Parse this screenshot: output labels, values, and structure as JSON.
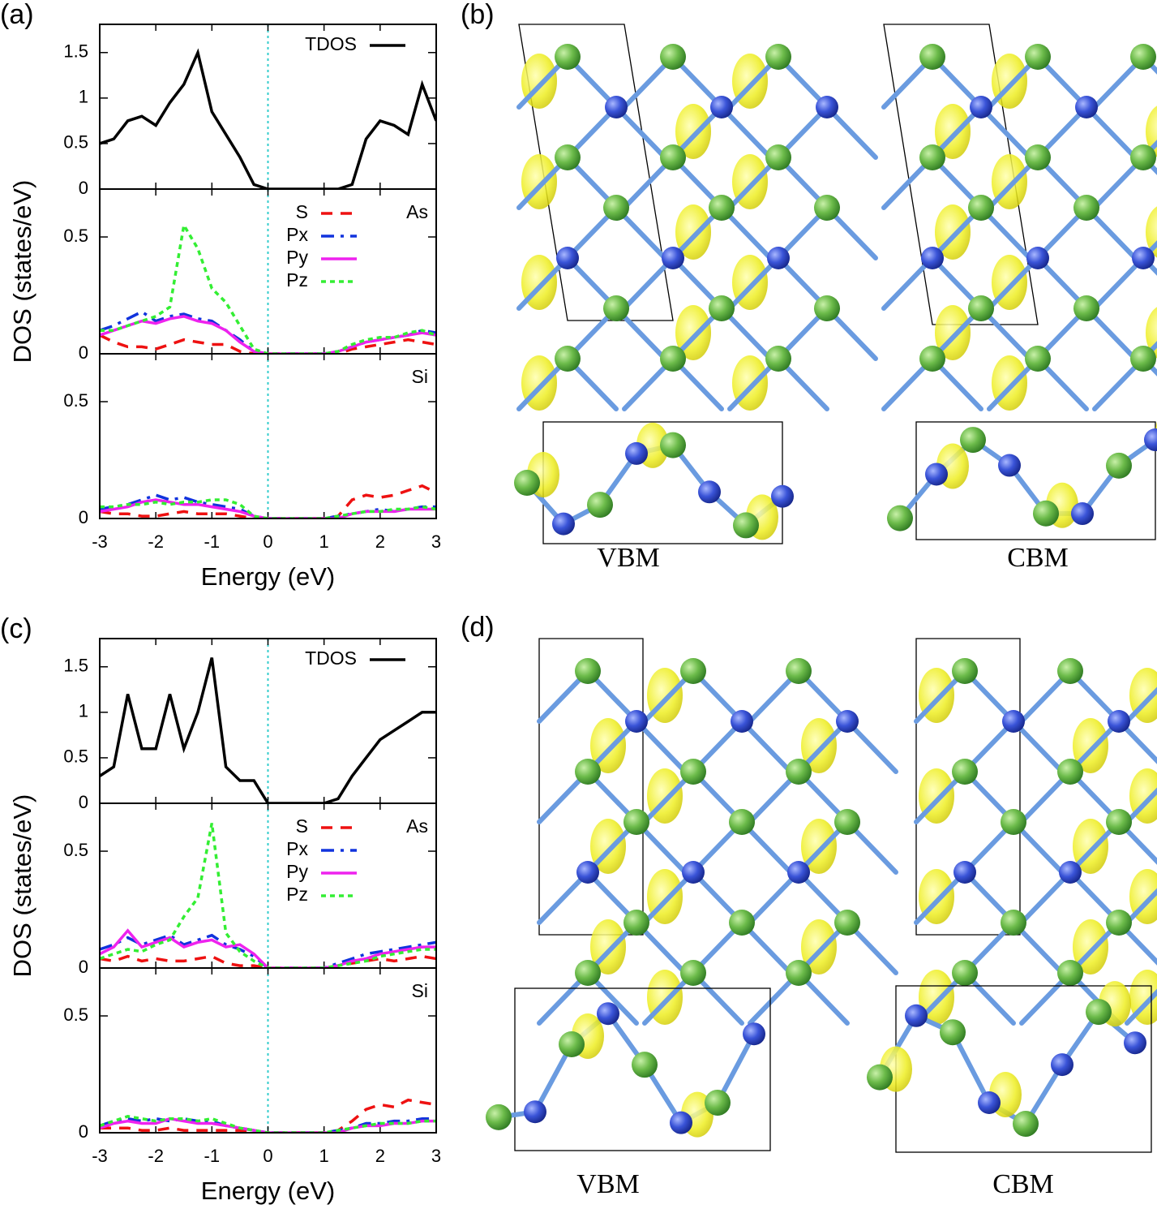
{
  "chart_data": [
    {
      "type": "line",
      "label": "(a)",
      "xlabel": "Energy (eV)",
      "ylabel": "DOS (states/eV)",
      "x": [
        -3,
        -2.75,
        -2.5,
        -2.25,
        -2,
        -1.75,
        -1.5,
        -1.25,
        -1,
        -0.75,
        -0.5,
        -0.25,
        0,
        0.25,
        0.5,
        0.75,
        1,
        1.25,
        1.5,
        1.75,
        2,
        2.25,
        2.5,
        2.75,
        3
      ],
      "xlim": [
        -3,
        3
      ],
      "xticks": [
        -3,
        -2,
        -1,
        0,
        1,
        2,
        3
      ],
      "vline": 0,
      "vline_color": "#33cccc",
      "panels": [
        {
          "ylim": [
            0,
            1.81
          ],
          "yticks": [
            0,
            0.5,
            1,
            1.5
          ],
          "series": [
            {
              "name": "TDOS",
              "color": "#000000",
              "dash": "solid",
              "values": [
                0.5,
                0.55,
                0.75,
                0.8,
                0.7,
                0.95,
                1.15,
                1.5,
                0.85,
                0.6,
                0.35,
                0.05,
                0,
                0,
                0,
                0,
                0,
                0,
                0.05,
                0.55,
                0.75,
                0.7,
                0.6,
                1.15,
                0.75
              ]
            }
          ]
        },
        {
          "label": "As",
          "ylim": [
            0,
            0.705
          ],
          "yticks": [
            0,
            0.5
          ],
          "series": [
            {
              "name": "S",
              "color": "#ee1111",
              "dash": "dashed",
              "values": [
                0.08,
                0.05,
                0.03,
                0.03,
                0.02,
                0.04,
                0.06,
                0.05,
                0.04,
                0.04,
                0.01,
                0,
                0,
                0,
                0,
                0,
                0,
                0,
                0.02,
                0.03,
                0.04,
                0.05,
                0.06,
                0.05,
                0.04
              ]
            },
            {
              "name": "Px",
              "color": "#1133dd",
              "dash": "dashdot",
              "values": [
                0.1,
                0.12,
                0.15,
                0.18,
                0.14,
                0.16,
                0.17,
                0.15,
                0.14,
                0.1,
                0.06,
                0.01,
                0,
                0,
                0,
                0,
                0,
                0.01,
                0.03,
                0.05,
                0.06,
                0.07,
                0.08,
                0.1,
                0.09
              ]
            },
            {
              "name": "Py",
              "color": "#ee22ee",
              "dash": "solid",
              "values": [
                0.08,
                0.1,
                0.12,
                0.14,
                0.13,
                0.15,
                0.16,
                0.14,
                0.13,
                0.1,
                0.05,
                0.01,
                0,
                0,
                0,
                0,
                0,
                0.01,
                0.03,
                0.05,
                0.06,
                0.07,
                0.08,
                0.09,
                0.08
              ]
            },
            {
              "name": "Pz",
              "color": "#33ee33",
              "dash": "dotted",
              "values": [
                0.1,
                0.1,
                0.12,
                0.14,
                0.16,
                0.2,
                0.55,
                0.45,
                0.28,
                0.22,
                0.12,
                0.02,
                0,
                0,
                0,
                0,
                0,
                0.01,
                0.04,
                0.06,
                0.07,
                0.07,
                0.09,
                0.1,
                0.08
              ]
            }
          ]
        },
        {
          "label": "Si",
          "ylim": [
            0,
            0.705
          ],
          "yticks": [
            0,
            0.5
          ],
          "series": [
            {
              "color": "#ee1111",
              "dash": "dashed",
              "values": [
                0.03,
                0.02,
                0.02,
                0.01,
                0.01,
                0.02,
                0.03,
                0.02,
                0.02,
                0.02,
                0.01,
                0,
                0,
                0,
                0,
                0,
                0,
                0.01,
                0.08,
                0.1,
                0.09,
                0.1,
                0.12,
                0.14,
                0.11
              ]
            },
            {
              "color": "#1133dd",
              "dash": "dashdot",
              "values": [
                0.04,
                0.05,
                0.06,
                0.08,
                0.1,
                0.08,
                0.09,
                0.07,
                0.06,
                0.05,
                0.04,
                0.01,
                0,
                0,
                0,
                0,
                0,
                0.01,
                0.02,
                0.03,
                0.04,
                0.03,
                0.04,
                0.05,
                0.05
              ]
            },
            {
              "color": "#ee22ee",
              "dash": "solid",
              "values": [
                0.03,
                0.04,
                0.05,
                0.07,
                0.08,
                0.07,
                0.06,
                0.06,
                0.05,
                0.04,
                0.03,
                0.01,
                0,
                0,
                0,
                0,
                0,
                0,
                0.02,
                0.03,
                0.03,
                0.03,
                0.04,
                0.04,
                0.04
              ]
            },
            {
              "color": "#33ee33",
              "dash": "dotted",
              "values": [
                0.05,
                0.05,
                0.06,
                0.06,
                0.07,
                0.06,
                0.07,
                0.07,
                0.08,
                0.08,
                0.06,
                0.01,
                0,
                0,
                0,
                0,
                0,
                0.01,
                0.02,
                0.03,
                0.03,
                0.04,
                0.04,
                0.05,
                0.04
              ]
            }
          ]
        }
      ]
    },
    {
      "type": "line",
      "label": "(c)",
      "xlabel": "Energy (eV)",
      "ylabel": "DOS (states/eV)",
      "x": [
        -3,
        -2.75,
        -2.5,
        -2.25,
        -2,
        -1.75,
        -1.5,
        -1.25,
        -1,
        -0.75,
        -0.5,
        -0.25,
        0,
        0.25,
        0.5,
        0.75,
        1,
        1.25,
        1.5,
        1.75,
        2,
        2.25,
        2.5,
        2.75,
        3
      ],
      "xlim": [
        -3,
        3
      ],
      "xticks": [
        -3,
        -2,
        -1,
        0,
        1,
        2,
        3
      ],
      "vline": 0,
      "vline_color": "#33cccc",
      "panels": [
        {
          "ylim": [
            0,
            1.81
          ],
          "yticks": [
            0,
            0.5,
            1,
            1.5
          ],
          "series": [
            {
              "name": "TDOS",
              "color": "#000000",
              "dash": "solid",
              "values": [
                0.3,
                0.4,
                1.2,
                0.6,
                0.6,
                1.2,
                0.6,
                1.0,
                1.6,
                0.4,
                0.25,
                0.25,
                0,
                0,
                0,
                0,
                0,
                0.05,
                0.3,
                0.5,
                0.7,
                0.8,
                0.9,
                1.0,
                1.0
              ]
            }
          ]
        },
        {
          "label": "As",
          "ylim": [
            0,
            0.705
          ],
          "yticks": [
            0,
            0.5
          ],
          "series": [
            {
              "name": "S",
              "color": "#ee1111",
              "dash": "dashed",
              "values": [
                0.04,
                0.03,
                0.05,
                0.03,
                0.04,
                0.03,
                0.03,
                0.04,
                0.05,
                0.02,
                0.01,
                0.01,
                0,
                0,
                0,
                0,
                0,
                0.01,
                0.02,
                0.03,
                0.04,
                0.03,
                0.04,
                0.05,
                0.04
              ]
            },
            {
              "name": "Px",
              "color": "#1133dd",
              "dash": "dashdot",
              "values": [
                0.08,
                0.1,
                0.13,
                0.1,
                0.12,
                0.14,
                0.1,
                0.12,
                0.14,
                0.1,
                0.08,
                0.05,
                0,
                0,
                0,
                0,
                0,
                0.02,
                0.04,
                0.06,
                0.07,
                0.08,
                0.09,
                0.1,
                0.11
              ]
            },
            {
              "name": "Py",
              "color": "#ee22ee",
              "dash": "solid",
              "values": [
                0.06,
                0.09,
                0.16,
                0.09,
                0.11,
                0.13,
                0.09,
                0.11,
                0.12,
                0.09,
                0.1,
                0.06,
                0,
                0,
                0,
                0,
                0,
                0.01,
                0.03,
                0.04,
                0.06,
                0.07,
                0.08,
                0.09,
                0.09
              ]
            },
            {
              "name": "Pz",
              "color": "#33ee33",
              "dash": "dotted",
              "values": [
                0.04,
                0.06,
                0.08,
                0.07,
                0.1,
                0.12,
                0.22,
                0.3,
                0.62,
                0.15,
                0.07,
                0.03,
                0,
                0,
                0,
                0,
                0,
                0.01,
                0.02,
                0.03,
                0.05,
                0.06,
                0.07,
                0.08,
                0.08
              ]
            }
          ]
        },
        {
          "label": "Si",
          "ylim": [
            0,
            0.705
          ],
          "yticks": [
            0,
            0.5
          ],
          "series": [
            {
              "color": "#ee1111",
              "dash": "dashed",
              "values": [
                0.02,
                0.02,
                0.02,
                0.01,
                0.01,
                0.02,
                0.01,
                0.01,
                0.01,
                0.01,
                0.01,
                0,
                0,
                0,
                0,
                0,
                0,
                0.01,
                0.05,
                0.1,
                0.12,
                0.11,
                0.14,
                0.13,
                0.12
              ]
            },
            {
              "color": "#1133dd",
              "dash": "dashdot",
              "values": [
                0.03,
                0.05,
                0.06,
                0.05,
                0.06,
                0.05,
                0.06,
                0.05,
                0.05,
                0.03,
                0.02,
                0.01,
                0,
                0,
                0,
                0,
                0,
                0.01,
                0.02,
                0.04,
                0.04,
                0.05,
                0.05,
                0.06,
                0.06
              ]
            },
            {
              "color": "#ee22ee",
              "dash": "solid",
              "values": [
                0.02,
                0.04,
                0.05,
                0.04,
                0.04,
                0.06,
                0.05,
                0.04,
                0.04,
                0.03,
                0.02,
                0.01,
                0,
                0,
                0,
                0,
                0,
                0,
                0.02,
                0.03,
                0.03,
                0.04,
                0.04,
                0.05,
                0.05
              ]
            },
            {
              "color": "#33ee33",
              "dash": "dotted",
              "values": [
                0.03,
                0.05,
                0.07,
                0.06,
                0.05,
                0.06,
                0.06,
                0.05,
                0.06,
                0.04,
                0.02,
                0.01,
                0,
                0,
                0,
                0,
                0,
                0.01,
                0.02,
                0.03,
                0.04,
                0.04,
                0.04,
                0.05,
                0.05
              ]
            }
          ]
        }
      ]
    }
  ],
  "structure_panels": [
    {
      "label": "(b)",
      "captions": [
        "VBM",
        "CBM"
      ]
    },
    {
      "label": "(d)",
      "captions": [
        "VBM",
        "CBM"
      ]
    }
  ]
}
